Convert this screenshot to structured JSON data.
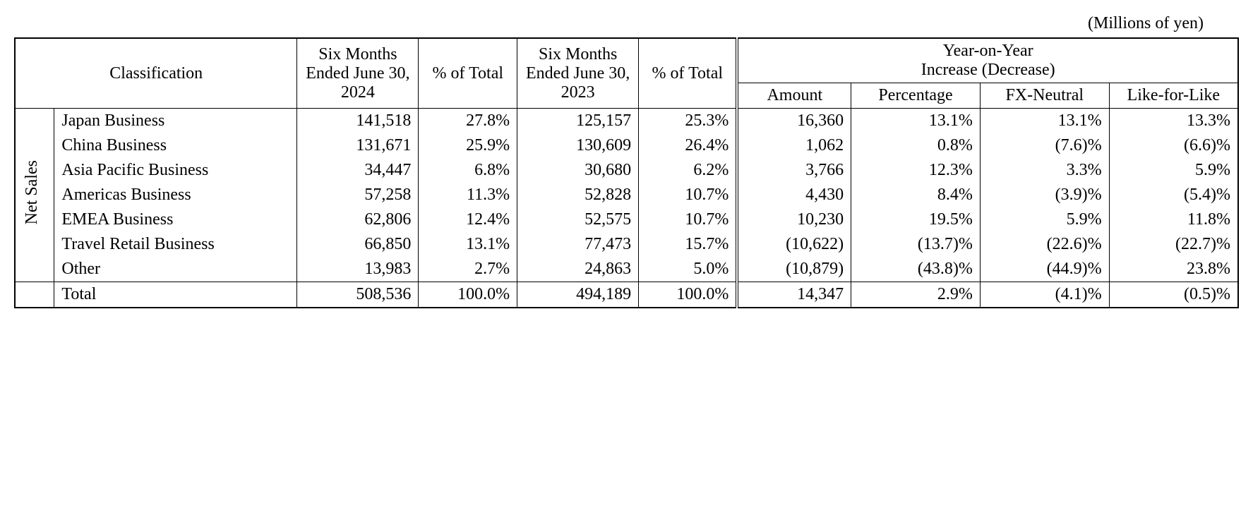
{
  "unit_label": "(Millions of yen)",
  "headers": {
    "classification": "Classification",
    "period_2024": "Six Months Ended June 30, 2024",
    "pct_total_1": "% of Total",
    "period_2023": "Six Months Ended June 30, 2023",
    "pct_total_2": "% of Total",
    "yoy_group": "Year-on-Year\nIncrease (Decrease)",
    "yoy_amount": "Amount",
    "yoy_pct": "Percentage",
    "yoy_fx": "FX-Neutral",
    "yoy_lfl": "Like-for-Like"
  },
  "side_label": "Net Sales",
  "rows": [
    {
      "label": "Japan Business",
      "v2024": "141,518",
      "p2024": "27.8%",
      "v2023": "125,157",
      "p2023": "25.3%",
      "amt": "16,360",
      "pct": "13.1%",
      "fx": "13.1%",
      "lfl": "13.3%"
    },
    {
      "label": "China Business",
      "v2024": "131,671",
      "p2024": "25.9%",
      "v2023": "130,609",
      "p2023": "26.4%",
      "amt": "1,062",
      "pct": "0.8%",
      "fx": "(7.6)%",
      "lfl": "(6.6)%"
    },
    {
      "label": "Asia Pacific Business",
      "v2024": "34,447",
      "p2024": "6.8%",
      "v2023": "30,680",
      "p2023": "6.2%",
      "amt": "3,766",
      "pct": "12.3%",
      "fx": "3.3%",
      "lfl": "5.9%"
    },
    {
      "label": "Americas Business",
      "v2024": "57,258",
      "p2024": "11.3%",
      "v2023": "52,828",
      "p2023": "10.7%",
      "amt": "4,430",
      "pct": "8.4%",
      "fx": "(3.9)%",
      "lfl": "(5.4)%"
    },
    {
      "label": "EMEA Business",
      "v2024": "62,806",
      "p2024": "12.4%",
      "v2023": "52,575",
      "p2023": "10.7%",
      "amt": "10,230",
      "pct": "19.5%",
      "fx": "5.9%",
      "lfl": "11.8%"
    },
    {
      "label": "Travel Retail Business",
      "v2024": "66,850",
      "p2024": "13.1%",
      "v2023": "77,473",
      "p2023": "15.7%",
      "amt": "(10,622)",
      "pct": "(13.7)%",
      "fx": "(22.6)%",
      "lfl": "(22.7)%"
    },
    {
      "label": "Other",
      "v2024": "13,983",
      "p2024": "2.7%",
      "v2023": "24,863",
      "p2023": "5.0%",
      "amt": "(10,879)",
      "pct": "(43.8)%",
      "fx": "(44.9)%",
      "lfl": "23.8%"
    }
  ],
  "total": {
    "label": "Total",
    "v2024": "508,536",
    "p2024": "100.0%",
    "v2023": "494,189",
    "p2023": "100.0%",
    "amt": "14,347",
    "pct": "2.9%",
    "fx": "(4.1)%",
    "lfl": "(0.5)%"
  }
}
